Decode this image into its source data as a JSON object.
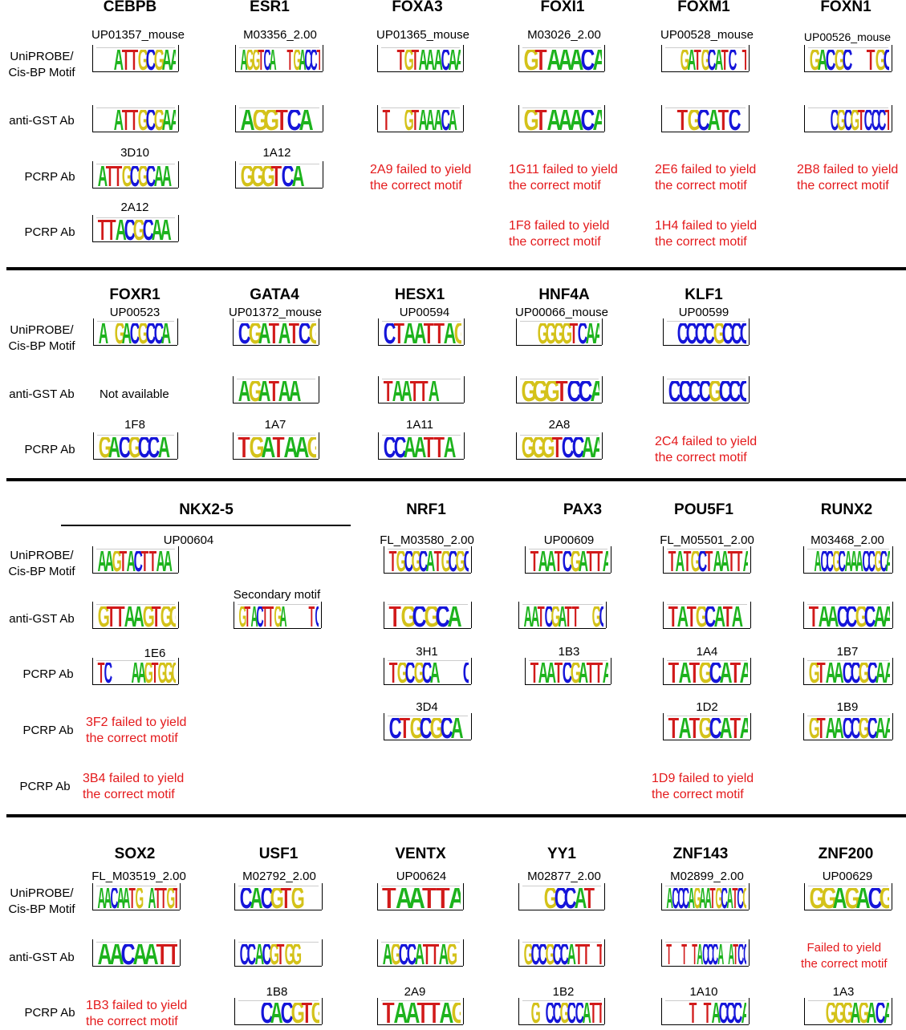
{
  "colors": {
    "A": "#1db31d",
    "C": "#1515d9",
    "G": "#d4c21a",
    "T": "#d11a1a",
    "fail": "#e41a1c"
  },
  "row_labels": {
    "uniprobe": [
      "UniPROBE/",
      "Cis-BP Motif"
    ],
    "gst": "anti-GST Ab",
    "pcrp": "PCRP Ab"
  },
  "sections": {
    "s1": {
      "headers": [
        "CEBPB",
        "ESR1",
        "FOXA3",
        "FOXI1",
        "FOXM1",
        "FOXN1"
      ],
      "motif_ids": [
        "UP01357_mouse",
        "M03356_2.00",
        "UP01365_mouse",
        "M03026_2.00",
        "UP00528_mouse",
        "UP00526_mouse"
      ],
      "uniprobe_logos": [
        "..ATTGCGAA",
        "AGGTCA..TGACCT",
        "..TGTAAACAA",
        "GTAAACA",
        "..GATGCATC.T",
        "GACGC..TGC"
      ],
      "gst_logos": [
        "..ATTGCGAA",
        "AGGTCA.",
        "T..GTAAACA.",
        "GTAAACA",
        ".TGCATC.",
        "...CGCGTCCCT"
      ],
      "pcrp_ids_1": [
        "3D10",
        "1A12"
      ],
      "pcrp_logos_1": [
        "ATTGCGCAA.",
        "GGGTCA.."
      ],
      "pcrp_ids_2": [
        "2A12"
      ],
      "pcrp_logos_2": [
        "TTACGCAA."
      ],
      "fails_1": [
        [
          "2A9 failed to yield",
          "the correct motif"
        ],
        [
          "1G11 failed to yield",
          "the correct motif"
        ],
        [
          "2E6 failed to yield",
          "the correct motif"
        ],
        [
          "2B8 failed to yield",
          "the correct motif"
        ]
      ],
      "fails_2": [
        [
          "1F8 failed to yield",
          "the correct motif"
        ],
        [
          "1H4 failed to yield",
          "the correct motif"
        ]
      ]
    },
    "s2": {
      "headers": [
        "FOXR1",
        "GATA4",
        "HESX1",
        "HNF4A",
        "KLF1"
      ],
      "motif_ids": [
        "UP00523",
        "UP01372_mouse",
        "UP00594",
        "UP00066_mouse",
        "UP00599"
      ],
      "uniprobe_logos": [
        "A.GACGCCA.",
        "CGATATCG",
        "CTAATTAG",
        "..GGGGTCAA",
        ".CCCCGCCC"
      ],
      "not_available": "Not available",
      "gst_logos": [
        "AGATAA..",
        "TAATTA...",
        "GGGTCCA",
        "CCCCGCCC"
      ],
      "pcrp_ids": [
        "1F8",
        "1A7",
        "1A11",
        "2A8"
      ],
      "pcrp_logos": [
        "GACGCCA.",
        "TGATAAG",
        "CCAATTA.",
        "GGGTCCAA"
      ],
      "fail": [
        "2C4 failed to yield",
        "the correct motif"
      ]
    },
    "s3": {
      "headers": [
        "NKX2-5",
        "NRF1",
        "PAX3",
        "POU5F1",
        "RUNX2"
      ],
      "motif_ids": [
        "UP00604",
        "FL_M03580_2.00",
        "UP00609",
        "FL_M05501_2.00",
        "M03468_2.00"
      ],
      "uniprobe_logos": [
        "AAGTACTTAA.",
        "TGCGCATGCGC",
        "TAATCGATTA",
        "TATGCTAATTA",
        ".ACCGCAAACCGCA"
      ],
      "secondary_label": "Secondary motif",
      "gst_logos": [
        "GTTAAGTGG",
        "GTACTTGA....TC",
        "TGCGCA.",
        "AATCGATT..GC",
        "TATGCATA.",
        "TAACCGCAA"
      ],
      "pcrp_ids_1": [
        "1E6",
        "3H1",
        "1B3",
        "1A4",
        "1B7"
      ],
      "pcrp_logos_1": [
        "TC...AAGTGGG",
        "TGCGCA...C",
        "TAATCGATTA",
        "TATGCATA",
        "GTAACCGCAA"
      ],
      "pcrp_ids_2": [
        "3D4",
        "1D2",
        "1B9"
      ],
      "pcrp_logos_2": [
        "CTGCGCA.",
        "TATGCATA",
        "GTAACCGCAA"
      ],
      "fails": [
        [
          "3F2 failed to yield",
          "the correct motif"
        ],
        [
          "3B4 failed to yield",
          "the correct motif"
        ],
        [
          "1D9 failed to yield",
          "the correct motif"
        ]
      ]
    },
    "s4": {
      "headers": [
        "SOX2",
        "USF1",
        "VENTX",
        "YY1",
        "ZNF143",
        "ZNF200"
      ],
      "motif_ids": [
        "FL_M03519_2.00",
        "M02792_2.00",
        "UP00624",
        "M02877_2.00",
        "M02899_2.00",
        "UP00629"
      ],
      "uniprobe_logos": [
        "AACAATG.ATTGT",
        "CACGTG..",
        "TAATTA",
        "..GCCAT.",
        "ACCCAGAATGCATCG",
        "GGAGACG"
      ],
      "gst_logos": [
        "AACAATT",
        "CCACGTGG...",
        "AGCCATTAG.",
        "GCCGCCATT.T",
        "T..T.TACCCA.ATCC"
      ],
      "gst_fail": [
        "Failed to yield",
        "the correct motif"
      ],
      "pcrp_ids": [
        "1B8",
        "2A9",
        "1B2",
        "1A10",
        "1A3"
      ],
      "pcrp_logos": [
        "..CACGTG",
        "TAATTAG",
        ".G.CCGCCATT",
        "...T.TACCCA",
        "..GGGAGACA"
      ],
      "fail": [
        "1B3 failed to yield",
        "the correct motif"
      ]
    }
  }
}
